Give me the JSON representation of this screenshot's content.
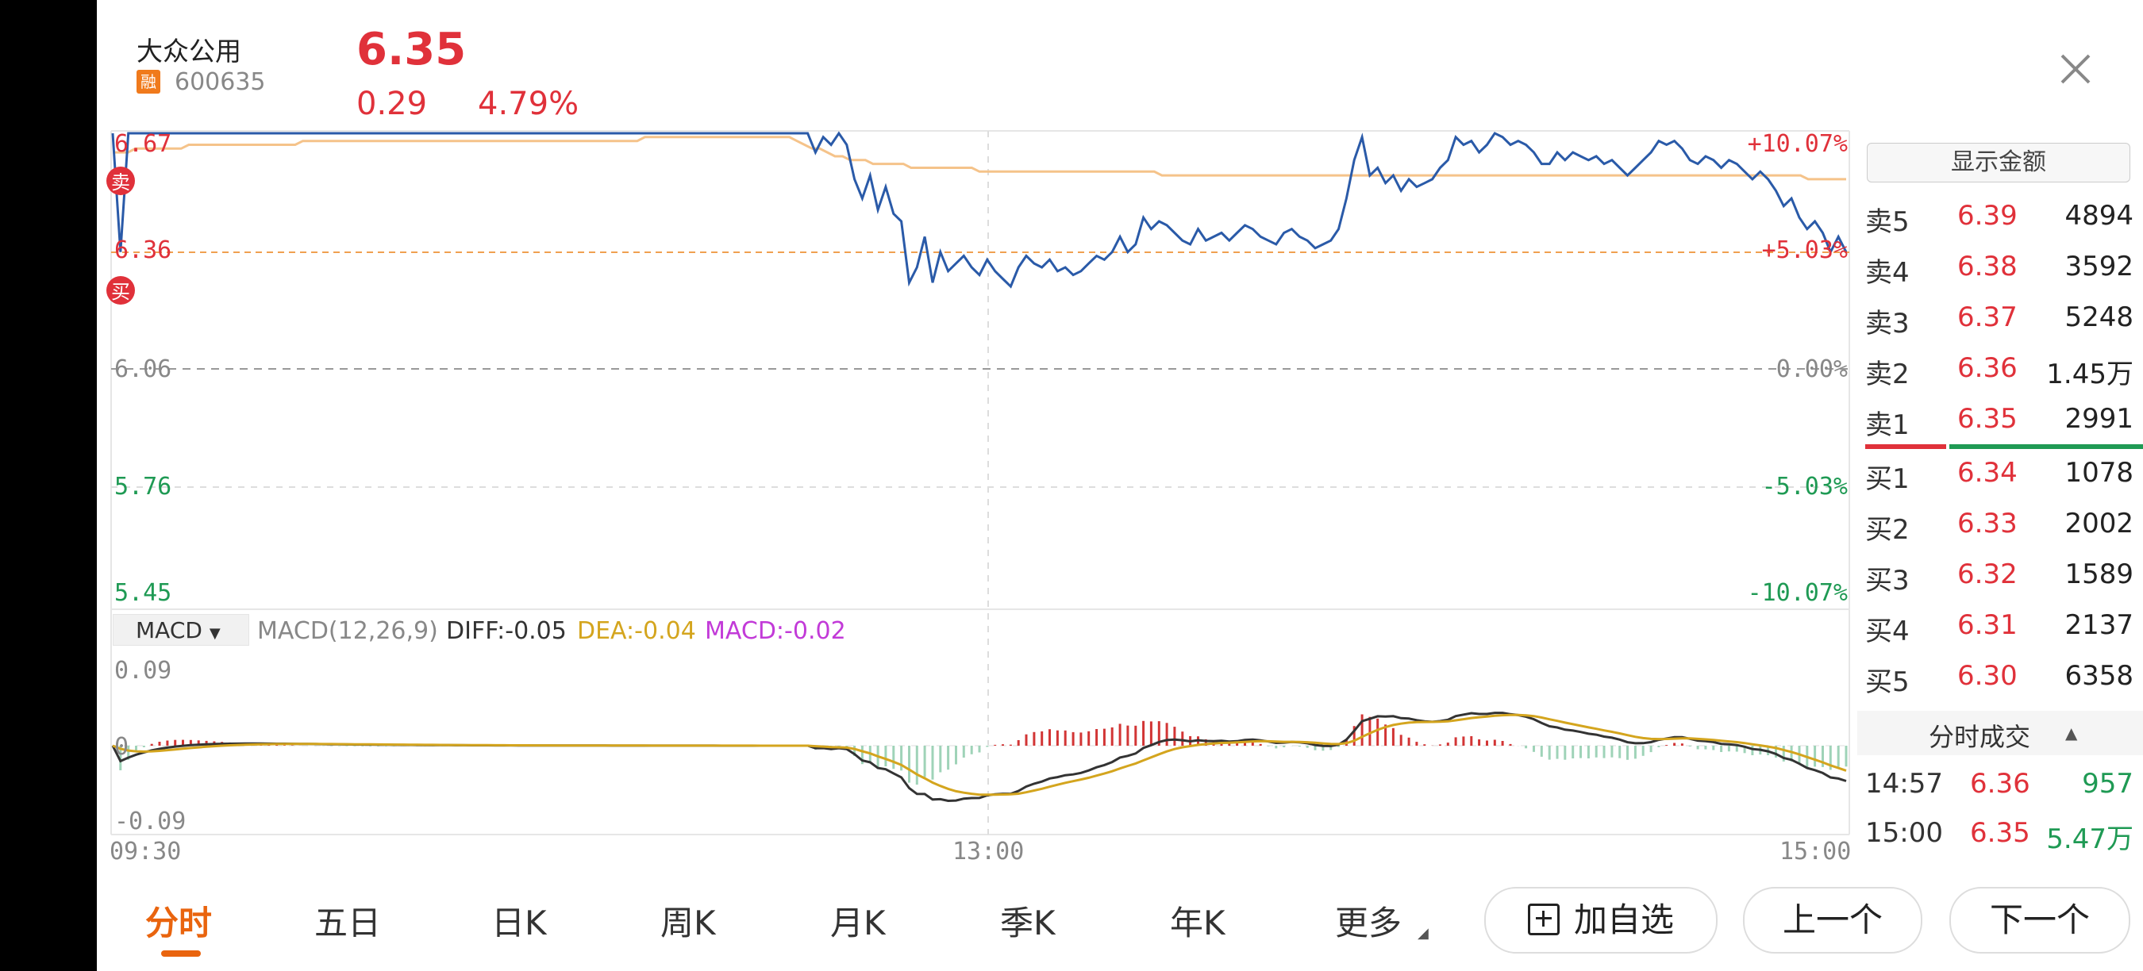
{
  "stock": {
    "name": "大众公用",
    "badge": "融",
    "code": "600635",
    "price": "6.35",
    "change": "0.29",
    "change_pct": "4.79%"
  },
  "chart_axes": {
    "price_labels": [
      "6.67",
      "6.36",
      "6.06",
      "5.76",
      "5.45"
    ],
    "pct_labels": [
      "+10.07%",
      "+5.03%",
      "0.00%",
      "-5.03%",
      "-10.07%"
    ],
    "time_labels": [
      "09:30",
      "13:00",
      "15:00"
    ],
    "macd_labels": [
      "0.09",
      "0",
      "-0.09"
    ]
  },
  "chart_markers": {
    "sell": "卖",
    "buy": "买"
  },
  "macd": {
    "selector": "MACD",
    "params": "MACD(12,26,9)",
    "diff": "DIFF:-0.05",
    "dea": "DEA:-0.04",
    "macd": "MACD:-0.02"
  },
  "order_book": {
    "toggle_label": "显示金额",
    "asks": [
      {
        "label": "卖5",
        "price": "6.39",
        "vol": "4894"
      },
      {
        "label": "卖4",
        "price": "6.38",
        "vol": "3592"
      },
      {
        "label": "卖3",
        "price": "6.37",
        "vol": "5248"
      },
      {
        "label": "卖2",
        "price": "6.36",
        "vol": "1.45万"
      },
      {
        "label": "卖1",
        "price": "6.35",
        "vol": "2991"
      }
    ],
    "bids": [
      {
        "label": "买1",
        "price": "6.34",
        "vol": "1078"
      },
      {
        "label": "买2",
        "price": "6.33",
        "vol": "2002"
      },
      {
        "label": "买3",
        "price": "6.32",
        "vol": "1589"
      },
      {
        "label": "买4",
        "price": "6.31",
        "vol": "2137"
      },
      {
        "label": "买5",
        "price": "6.30",
        "vol": "6358"
      }
    ],
    "ticks_title": "分时成交",
    "ticks": [
      {
        "time": "14:57",
        "price": "6.36",
        "vol": "957"
      },
      {
        "time": "15:00",
        "price": "6.35",
        "vol": "5.47万"
      }
    ]
  },
  "tabs": [
    "分时",
    "五日",
    "日K",
    "周K",
    "月K",
    "季K",
    "年K",
    "更多"
  ],
  "active_tab": "分时",
  "buttons": {
    "add_watch": "加自选",
    "prev": "上一个",
    "next": "下一个"
  },
  "colors": {
    "up": "#e0313a",
    "down": "#1f9a54",
    "price_line": "#2a5aa8",
    "avg_line": "#f5c38a",
    "accent": "#e9640e"
  },
  "chart_data": {
    "type": "line",
    "x_range": [
      "09:30",
      "15:00"
    ],
    "ylim": [
      5.45,
      6.67
    ],
    "prev_close": 6.06,
    "series": [
      {
        "values": [
          6.67,
          6.36,
          6.67,
          6.67,
          6.67,
          6.67,
          6.67,
          6.67,
          6.67,
          6.67,
          6.67,
          6.67,
          6.67,
          6.67,
          6.67,
          6.67,
          6.67,
          6.67,
          6.67,
          6.67,
          6.67,
          6.67,
          6.67,
          6.67,
          6.67,
          6.67,
          6.67,
          6.67,
          6.67,
          6.67,
          6.67,
          6.67,
          6.67,
          6.67,
          6.67,
          6.67,
          6.67,
          6.67,
          6.67,
          6.67,
          6.67,
          6.67,
          6.67,
          6.67,
          6.67,
          6.67,
          6.67,
          6.67,
          6.67,
          6.67,
          6.67,
          6.67,
          6.67,
          6.67,
          6.67,
          6.67,
          6.67,
          6.67,
          6.67,
          6.67,
          6.67,
          6.67,
          6.67,
          6.67,
          6.67,
          6.67,
          6.67,
          6.67,
          6.67,
          6.67,
          6.67,
          6.67,
          6.67,
          6.67,
          6.67,
          6.67,
          6.67,
          6.67,
          6.67,
          6.67,
          6.67,
          6.67,
          6.67,
          6.67,
          6.67,
          6.67,
          6.67,
          6.67,
          6.67,
          6.67,
          6.62,
          6.66,
          6.64,
          6.67,
          6.64,
          6.55,
          6.5,
          6.56,
          6.47,
          6.53,
          6.46,
          6.44,
          6.28,
          6.32,
          6.4,
          6.28,
          6.36,
          6.31,
          6.33,
          6.35,
          6.32,
          6.3,
          6.34,
          6.31,
          6.29,
          6.27,
          6.32,
          6.35,
          6.33,
          6.32,
          6.34,
          6.31,
          6.32,
          6.3,
          6.31,
          6.33,
          6.35,
          6.34,
          6.36,
          6.4,
          6.36,
          6.38,
          6.45,
          6.42,
          6.44,
          6.43,
          6.41,
          6.39,
          6.38,
          6.42,
          6.39,
          6.4,
          6.41,
          6.39,
          6.41,
          6.43,
          6.42,
          6.4,
          6.39,
          6.38,
          6.41,
          6.42,
          6.4,
          6.39,
          6.37,
          6.38,
          6.39,
          6.42,
          6.5,
          6.6,
          6.66,
          6.56,
          6.58,
          6.54,
          6.56,
          6.52,
          6.55,
          6.53,
          6.54,
          6.55,
          6.58,
          6.6,
          6.66,
          6.64,
          6.65,
          6.62,
          6.64,
          6.67,
          6.66,
          6.64,
          6.65,
          6.64,
          6.62,
          6.59,
          6.59,
          6.62,
          6.6,
          6.62,
          6.61,
          6.6,
          6.61,
          6.59,
          6.6,
          6.58,
          6.56,
          6.58,
          6.6,
          6.62,
          6.65,
          6.64,
          6.65,
          6.63,
          6.6,
          6.59,
          6.61,
          6.6,
          6.58,
          6.6,
          6.59,
          6.57,
          6.55,
          6.57,
          6.55,
          6.52,
          6.48,
          6.5,
          6.45,
          6.42,
          6.44,
          6.41,
          6.36,
          6.4,
          6.36
        ]
      },
      {
        "values": [
          6.62,
          6.62,
          6.62,
          6.63,
          6.63,
          6.63,
          6.63,
          6.63,
          6.63,
          6.63,
          6.64,
          6.64,
          6.64,
          6.64,
          6.64,
          6.64,
          6.64,
          6.64,
          6.64,
          6.64,
          6.64,
          6.64,
          6.64,
          6.64,
          6.64,
          6.65,
          6.65,
          6.65,
          6.65,
          6.65,
          6.65,
          6.65,
          6.65,
          6.65,
          6.65,
          6.65,
          6.65,
          6.65,
          6.65,
          6.65,
          6.65,
          6.65,
          6.65,
          6.65,
          6.65,
          6.65,
          6.65,
          6.65,
          6.65,
          6.65,
          6.65,
          6.65,
          6.65,
          6.65,
          6.65,
          6.65,
          6.65,
          6.65,
          6.65,
          6.65,
          6.65,
          6.65,
          6.65,
          6.65,
          6.65,
          6.65,
          6.65,
          6.65,
          6.65,
          6.65,
          6.66,
          6.66,
          6.66,
          6.66,
          6.66,
          6.66,
          6.66,
          6.66,
          6.66,
          6.66,
          6.66,
          6.66,
          6.66,
          6.66,
          6.66,
          6.66,
          6.66,
          6.66,
          6.66,
          6.66,
          6.65,
          6.64,
          6.63,
          6.63,
          6.62,
          6.61,
          6.61,
          6.6,
          6.6,
          6.6,
          6.59,
          6.59,
          6.59,
          6.59,
          6.59,
          6.58,
          6.58,
          6.58,
          6.58,
          6.58,
          6.58,
          6.58,
          6.58,
          6.58,
          6.57,
          6.57,
          6.57,
          6.57,
          6.57,
          6.57,
          6.57,
          6.57,
          6.57,
          6.57,
          6.57,
          6.57,
          6.57,
          6.57,
          6.57,
          6.57,
          6.57,
          6.57,
          6.57,
          6.57,
          6.57,
          6.57,
          6.57,
          6.57,
          6.56,
          6.56,
          6.56,
          6.56,
          6.56,
          6.56,
          6.56,
          6.56,
          6.56,
          6.56,
          6.56,
          6.56,
          6.56,
          6.56,
          6.56,
          6.56,
          6.56,
          6.56,
          6.56,
          6.56,
          6.56,
          6.56,
          6.56,
          6.56,
          6.56,
          6.56,
          6.56,
          6.56,
          6.56,
          6.56,
          6.56,
          6.56,
          6.56,
          6.56,
          6.56,
          6.56,
          6.56,
          6.56,
          6.56,
          6.56,
          6.56,
          6.56,
          6.56,
          6.56,
          6.56,
          6.56,
          6.56,
          6.56,
          6.56,
          6.56,
          6.56,
          6.56,
          6.56,
          6.56,
          6.56,
          6.56,
          6.56,
          6.56,
          6.56,
          6.56,
          6.56,
          6.56,
          6.56,
          6.56,
          6.56,
          6.56,
          6.56,
          6.56,
          6.56,
          6.56,
          6.56,
          6.56,
          6.56,
          6.56,
          6.56,
          6.56,
          6.56,
          6.56,
          6.56,
          6.56,
          6.56,
          6.56,
          6.56,
          6.56,
          6.56,
          6.55,
          6.55,
          6.55,
          6.55,
          6.55,
          6.55
        ]
      }
    ]
  }
}
